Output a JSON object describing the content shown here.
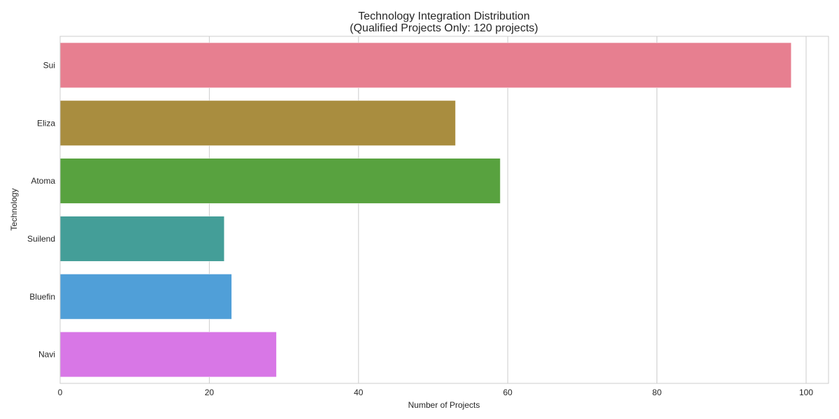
{
  "chart_data": {
    "type": "bar",
    "orientation": "horizontal",
    "title": "Technology Integration Distribution",
    "subtitle": "(Qualified Projects Only: 120 projects)",
    "xlabel": "Number of Projects",
    "ylabel": "Technology",
    "categories": [
      "Sui",
      "Eliza",
      "Atoma",
      "Suilend",
      "Bluefin",
      "Navi"
    ],
    "values": [
      98,
      53,
      59,
      22,
      23,
      29
    ],
    "colors": [
      "#e77f90",
      "#a98d3f",
      "#58a23f",
      "#449e98",
      "#509fd8",
      "#d877e6"
    ],
    "xlim": [
      0,
      103
    ],
    "xticks": [
      0,
      20,
      40,
      60,
      80,
      100
    ],
    "grid": "vertical"
  }
}
